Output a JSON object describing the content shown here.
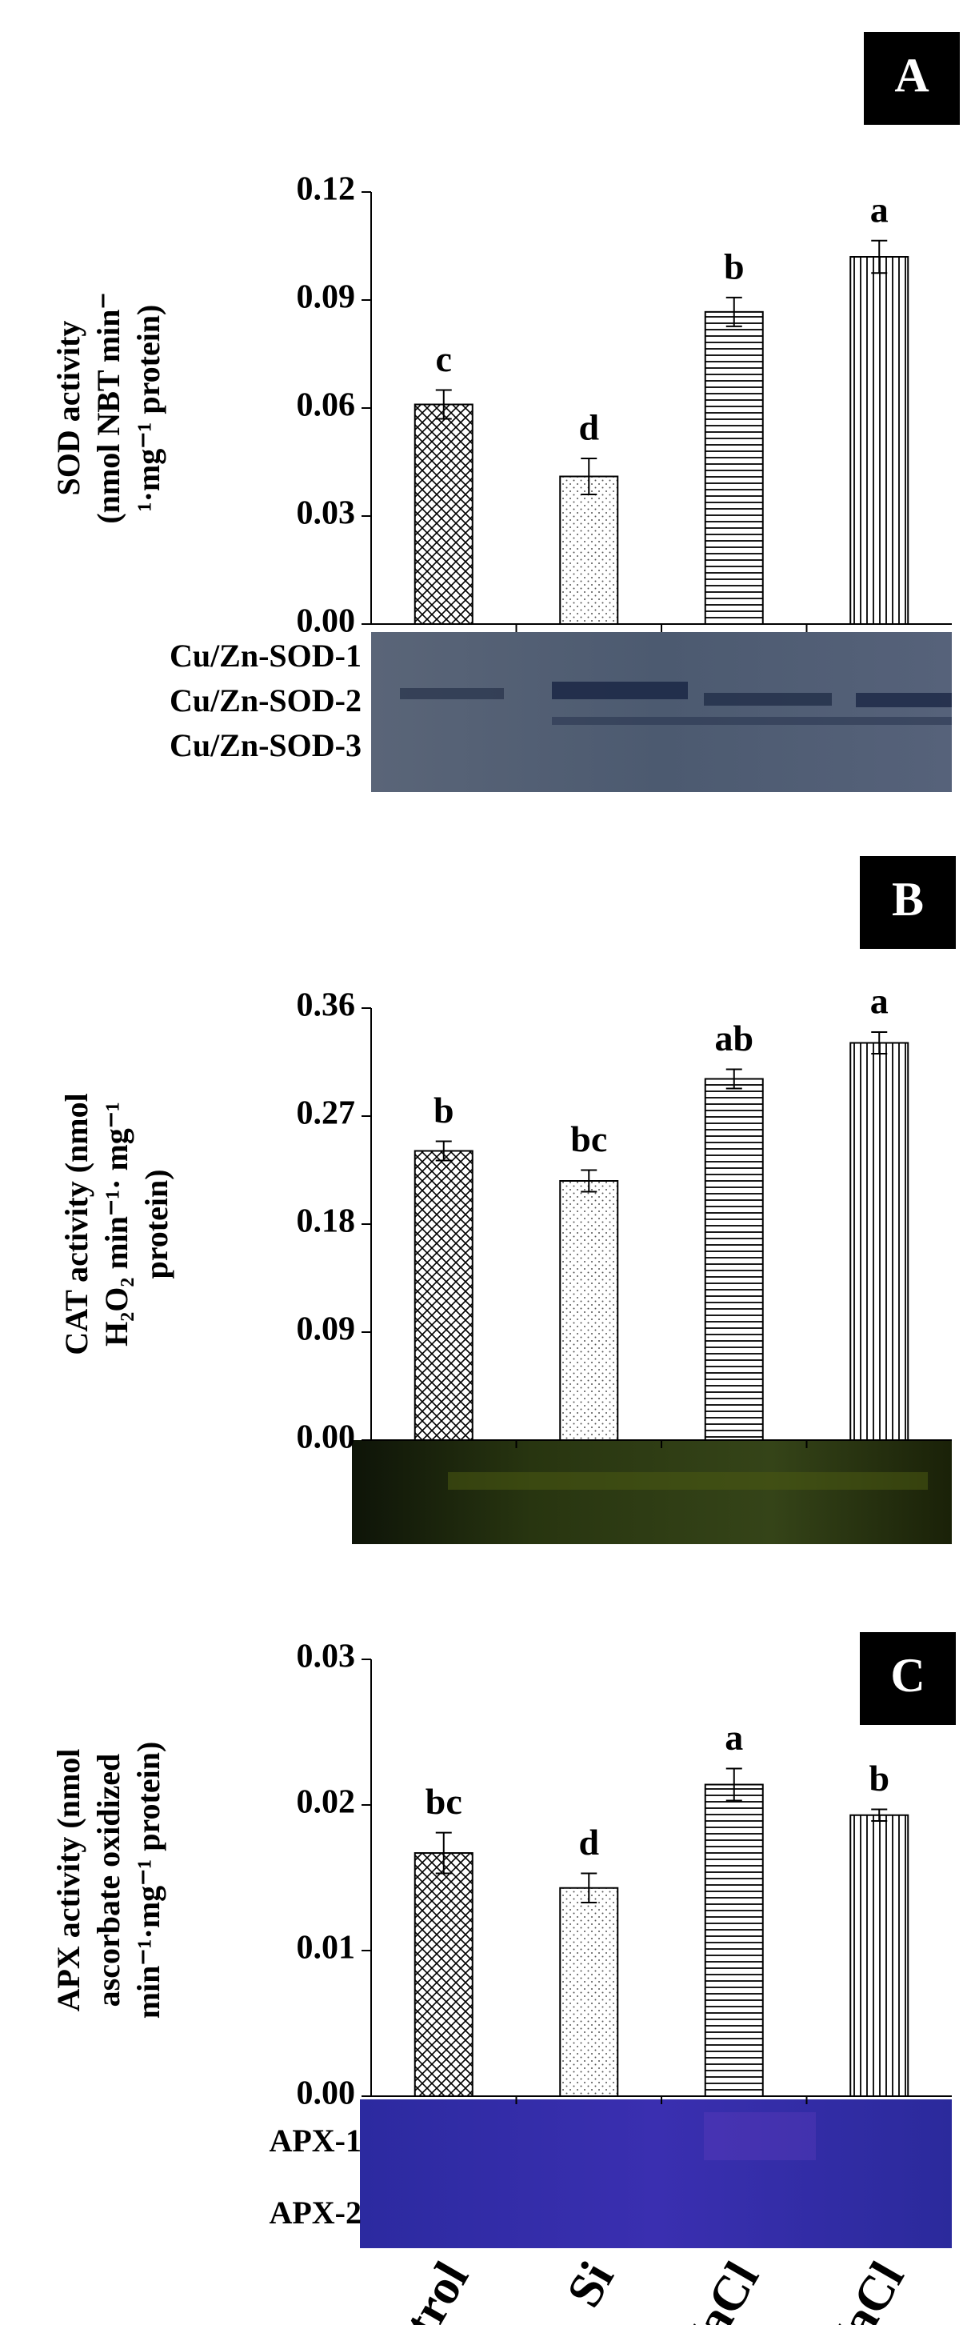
{
  "chart_data": [
    {
      "type": "bar",
      "panel": "A",
      "ylabel": [
        "SOD activity",
        "(nmol NBT min⁻",
        "¹·mg⁻¹ protein)"
      ],
      "values": [
        0.061,
        0.041,
        0.0867,
        0.102
      ],
      "errors": [
        0.004,
        0.005,
        0.004,
        0.0045
      ],
      "annotations": [
        "c",
        "d",
        "b",
        "a"
      ],
      "patterns": [
        "crosshatch",
        "dots",
        "horizontal",
        "vertical"
      ],
      "ylim": [
        0,
        0.12
      ],
      "yticks": [
        {
          "value": 0,
          "label": "0.00"
        },
        {
          "value": 0.03,
          "label": "0.03"
        },
        {
          "value": 0.06,
          "label": "0.06"
        },
        {
          "value": 0.09,
          "label": "0.09"
        },
        {
          "value": 0.12,
          "label": "0.12"
        }
      ],
      "gel_labels": [
        "Cu/Zn-SOD-1",
        "Cu/Zn-SOD-2",
        "Cu/Zn-SOD-3"
      ]
    },
    {
      "type": "bar",
      "panel": "B",
      "ylabel": [
        "CAT activity  (nmol",
        "H₂O₂ min⁻¹· mg⁻¹",
        "protein)"
      ],
      "values": [
        0.241,
        0.216,
        0.301,
        0.331
      ],
      "errors": [
        0.008,
        0.009,
        0.008,
        0.009
      ],
      "annotations": [
        "b",
        "bc",
        "ab",
        "a"
      ],
      "patterns": [
        "crosshatch",
        "dots",
        "horizontal",
        "vertical"
      ],
      "ylim": [
        0,
        0.36
      ],
      "yticks": [
        {
          "value": 0,
          "label": "0.00"
        },
        {
          "value": 0.09,
          "label": "0.09"
        },
        {
          "value": 0.18,
          "label": "0.18"
        },
        {
          "value": 0.27,
          "label": "0.27"
        },
        {
          "value": 0.36,
          "label": "0.36"
        }
      ]
    },
    {
      "type": "bar",
      "panel": "C",
      "ylabel": [
        "APX activity (nmol",
        "ascorbate oxidized",
        "min⁻¹·mg⁻¹ protein)"
      ],
      "categories": [
        "Control",
        "Si",
        "NaCl",
        "Si+NaCl"
      ],
      "values": [
        0.0167,
        0.0143,
        0.0214,
        0.0193
      ],
      "errors": [
        0.0014,
        0.001,
        0.0011,
        0.0004
      ],
      "annotations": [
        "bc",
        "d",
        "a",
        "b"
      ],
      "patterns": [
        "crosshatch",
        "dots",
        "horizontal",
        "vertical"
      ],
      "ylim": [
        0,
        0.03
      ],
      "yticks": [
        {
          "value": 0,
          "label": "0.00"
        },
        {
          "value": 0.01,
          "label": "0.01"
        },
        {
          "value": 0.02,
          "label": "0.02"
        },
        {
          "value": 0.03,
          "label": "0.03"
        }
      ],
      "gel_labels": [
        "APX-1",
        "APX-2"
      ]
    }
  ]
}
